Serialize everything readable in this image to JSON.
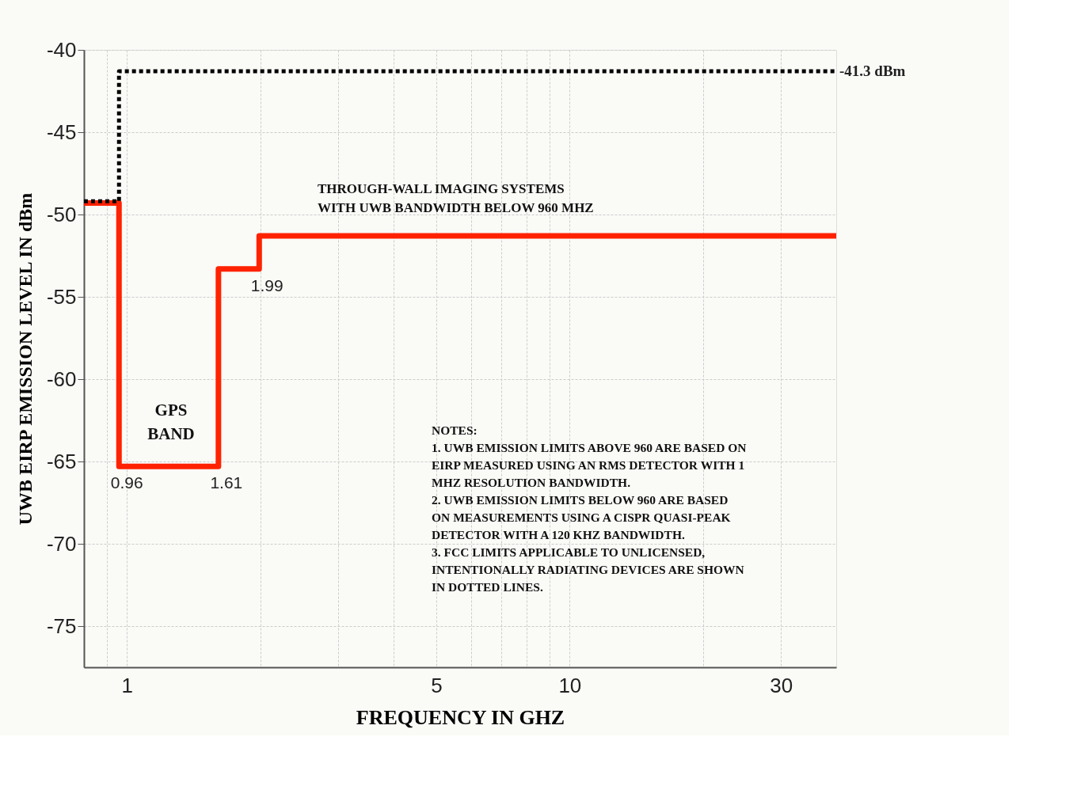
{
  "chart_data": {
    "type": "step",
    "xlabel": "FREQUENCY IN GHZ",
    "ylabel": "UWB EIRP EMISSION LEVEL IN dBm",
    "log": "x",
    "xlim": [
      0.8,
      40
    ],
    "ylim": [
      -77.5,
      -40
    ],
    "xticks": [
      {
        "value": 0.9,
        "label": null
      },
      1,
      {
        "value": 2,
        "label": null
      },
      {
        "value": 3,
        "label": null
      },
      {
        "value": 4,
        "label": null
      },
      5,
      {
        "value": 6,
        "label": null
      },
      {
        "value": 7,
        "label": null
      },
      {
        "value": 8,
        "label": null
      },
      {
        "value": 9,
        "label": null
      },
      10,
      {
        "value": 20,
        "label": null
      },
      30
    ],
    "yticks": [
      -75,
      -70,
      -65,
      -60,
      -55,
      -50,
      -45,
      -40
    ],
    "grid": true,
    "series": [
      {
        "color": "#ff2200",
        "line_style": "solid",
        "x": [
          0.8,
          0.96,
          1.61,
          1.99,
          40
        ],
        "values": [
          -49.3,
          -65.3,
          -53.3,
          -51.3,
          -51.3
        ]
      },
      {
        "color": "#000000",
        "line_style": "dotted",
        "x": [
          0.8,
          0.96,
          40
        ],
        "values": [
          -49.2,
          -41.3,
          -41.3
        ]
      }
    ],
    "annotations": [
      {
        "text": "-41.3 dBm",
        "x": 40,
        "y": -41.3
      },
      "THROUGH-WALL IMAGING SYSTEMS\nWITH UWB BANDWIDTH BELOW 960 MHZ",
      {
        "text": "1.99",
        "x": 1.99,
        "y": -53.3
      },
      "GPS\nBAND",
      {
        "text": "0.96",
        "x": 0.96,
        "y": -65.3
      },
      {
        "text": "1.61",
        "x": 1.61,
        "y": -65.3
      },
      "NOTES:\n1.  UWB EMISSION LIMITS ABOVE 960 ARE BASED ON\nEIRP MEASURED USING AN RMS DETECTOR WITH 1\nMHZ RESOLUTION BANDWIDTH.\n2.  UWB EMISSION LIMITS BELOW 960 ARE BASED\nON MEASUREMENTS USING A CISPR QUASI-PEAK\nDETECTOR WITH A 120 KHZ BANDWIDTH.\n3.  FCC LIMITS APPLICABLE TO UNLICENSED,\nINTENTIONALLY RADIATING  DEVICES ARE SHOWN\nIN DOTTED LINES."
    ]
  }
}
